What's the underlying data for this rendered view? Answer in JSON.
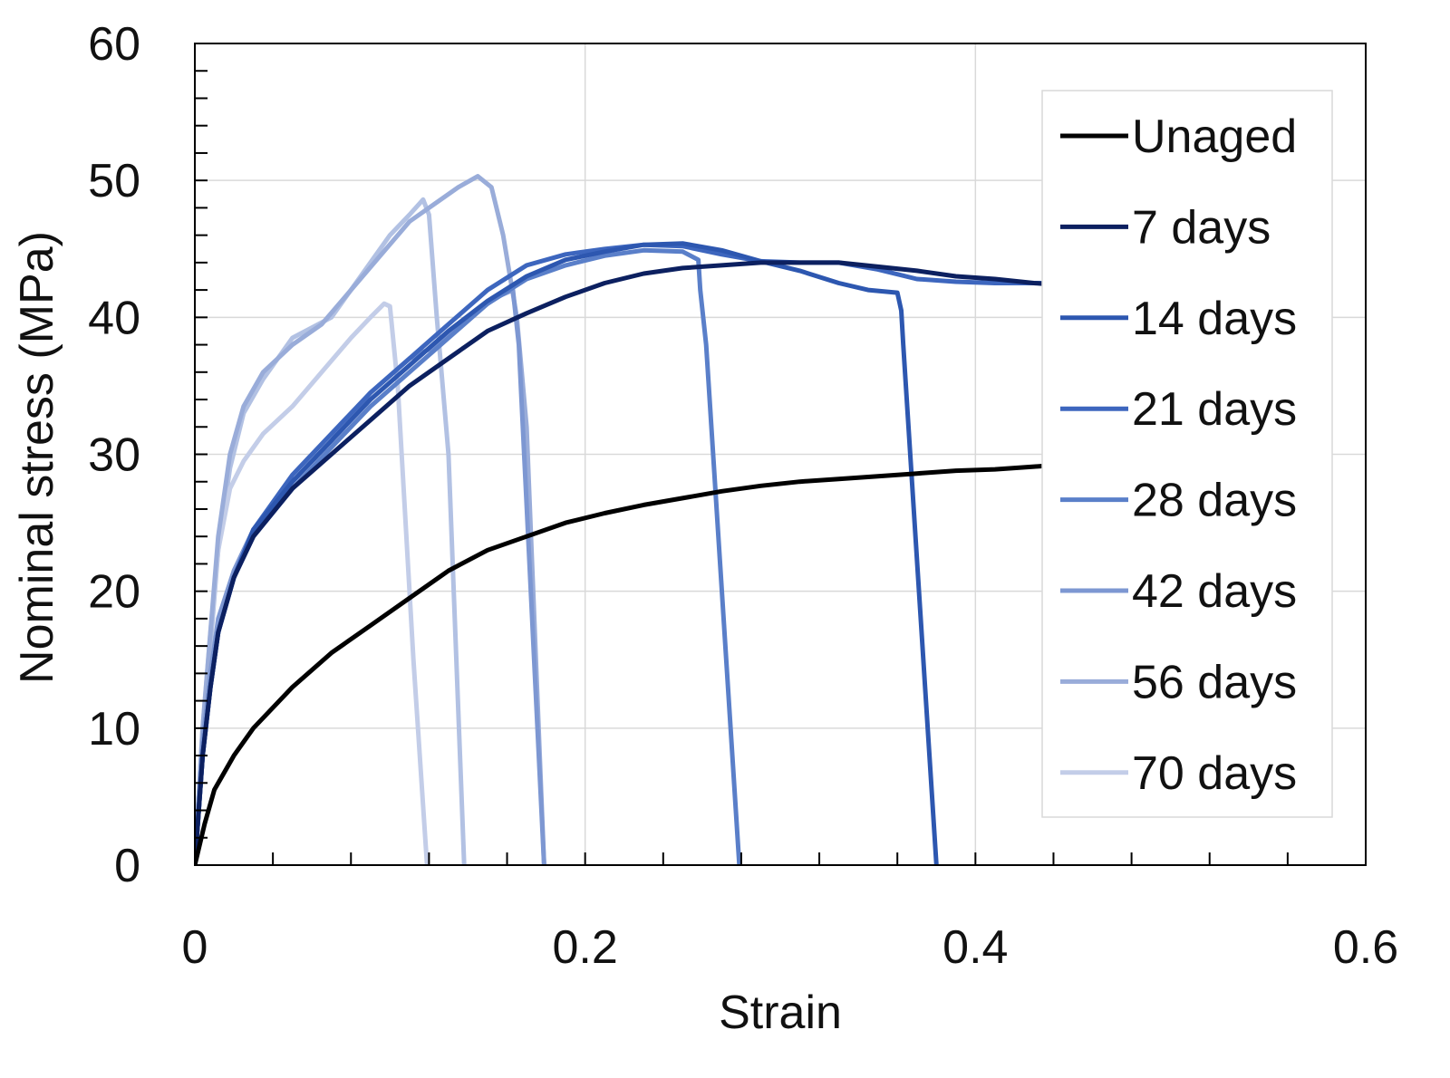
{
  "chart_data": {
    "type": "line",
    "title": "",
    "xlabel": "Strain",
    "ylabel": "Nominal stress (MPa)",
    "xlim": [
      0,
      0.6
    ],
    "ylim": [
      0,
      60
    ],
    "xticks": [
      0,
      0.2,
      0.4,
      0.6
    ],
    "xtick_labels": [
      "0",
      "0.2",
      "0.4",
      "0.6"
    ],
    "yticks": [
      0,
      10,
      20,
      30,
      40,
      50,
      60
    ],
    "ytick_labels": [
      "0",
      "10",
      "20",
      "30",
      "40",
      "50",
      "60"
    ],
    "grid": true,
    "legend_position": "top-right",
    "series": [
      {
        "name": "Unaged",
        "color": "#000000",
        "points": [
          [
            0,
            0
          ],
          [
            0.005,
            3
          ],
          [
            0.01,
            5.5
          ],
          [
            0.02,
            8
          ],
          [
            0.03,
            10
          ],
          [
            0.05,
            13
          ],
          [
            0.07,
            15.5
          ],
          [
            0.09,
            17.5
          ],
          [
            0.11,
            19.5
          ],
          [
            0.13,
            21.5
          ],
          [
            0.15,
            23
          ],
          [
            0.17,
            24
          ],
          [
            0.19,
            25
          ],
          [
            0.21,
            25.7
          ],
          [
            0.23,
            26.3
          ],
          [
            0.25,
            26.8
          ],
          [
            0.27,
            27.3
          ],
          [
            0.29,
            27.7
          ],
          [
            0.31,
            28
          ],
          [
            0.33,
            28.2
          ],
          [
            0.35,
            28.4
          ],
          [
            0.37,
            28.6
          ],
          [
            0.39,
            28.8
          ],
          [
            0.41,
            28.9
          ],
          [
            0.43,
            29.1
          ],
          [
            0.44,
            29.2
          ]
        ]
      },
      {
        "name": "7 days",
        "color": "#0c2060",
        "points": [
          [
            0,
            0
          ],
          [
            0.004,
            8
          ],
          [
            0.008,
            13
          ],
          [
            0.012,
            17
          ],
          [
            0.02,
            21
          ],
          [
            0.03,
            24
          ],
          [
            0.05,
            27.5
          ],
          [
            0.07,
            30
          ],
          [
            0.09,
            32.5
          ],
          [
            0.11,
            35
          ],
          [
            0.13,
            37
          ],
          [
            0.15,
            39
          ],
          [
            0.17,
            40.3
          ],
          [
            0.19,
            41.5
          ],
          [
            0.21,
            42.5
          ],
          [
            0.23,
            43.2
          ],
          [
            0.25,
            43.6
          ],
          [
            0.27,
            43.8
          ],
          [
            0.29,
            44
          ],
          [
            0.31,
            44
          ],
          [
            0.33,
            44
          ],
          [
            0.35,
            43.7
          ],
          [
            0.37,
            43.4
          ],
          [
            0.39,
            43
          ],
          [
            0.41,
            42.8
          ],
          [
            0.43,
            42.5
          ],
          [
            0.44,
            42.4
          ]
        ]
      },
      {
        "name": "14 days",
        "color": "#2d57b0",
        "points": [
          [
            0,
            0
          ],
          [
            0.004,
            8
          ],
          [
            0.008,
            13
          ],
          [
            0.012,
            17
          ],
          [
            0.02,
            21
          ],
          [
            0.03,
            24.5
          ],
          [
            0.05,
            28
          ],
          [
            0.07,
            31
          ],
          [
            0.09,
            34
          ],
          [
            0.11,
            36.5
          ],
          [
            0.13,
            39
          ],
          [
            0.15,
            41.2
          ],
          [
            0.17,
            43
          ],
          [
            0.19,
            44.2
          ],
          [
            0.21,
            44.8
          ],
          [
            0.23,
            45.3
          ],
          [
            0.25,
            45.4
          ],
          [
            0.27,
            44.9
          ],
          [
            0.29,
            44.1
          ],
          [
            0.31,
            43.4
          ],
          [
            0.33,
            42.5
          ],
          [
            0.345,
            42
          ],
          [
            0.36,
            41.8
          ],
          [
            0.362,
            40.5
          ],
          [
            0.363,
            38
          ],
          [
            0.38,
            0
          ]
        ]
      },
      {
        "name": "21 days",
        "color": "#3d66be",
        "points": [
          [
            0,
            0
          ],
          [
            0.004,
            8
          ],
          [
            0.008,
            13
          ],
          [
            0.012,
            17
          ],
          [
            0.02,
            21
          ],
          [
            0.03,
            24.5
          ],
          [
            0.05,
            28.5
          ],
          [
            0.07,
            31.5
          ],
          [
            0.09,
            34.5
          ],
          [
            0.11,
            37
          ],
          [
            0.13,
            39.5
          ],
          [
            0.15,
            42
          ],
          [
            0.17,
            43.8
          ],
          [
            0.19,
            44.6
          ],
          [
            0.21,
            45
          ],
          [
            0.23,
            45.3
          ],
          [
            0.25,
            45.2
          ],
          [
            0.27,
            44.6
          ],
          [
            0.29,
            44.1
          ],
          [
            0.31,
            44
          ],
          [
            0.33,
            44
          ],
          [
            0.35,
            43.5
          ],
          [
            0.37,
            42.8
          ],
          [
            0.39,
            42.6
          ],
          [
            0.41,
            42.5
          ],
          [
            0.43,
            42.5
          ],
          [
            0.44,
            42.5
          ]
        ]
      },
      {
        "name": "28 days",
        "color": "#5a7fc9",
        "points": [
          [
            0,
            0
          ],
          [
            0.004,
            8
          ],
          [
            0.008,
            13
          ],
          [
            0.012,
            17
          ],
          [
            0.02,
            21
          ],
          [
            0.03,
            24
          ],
          [
            0.05,
            27.5
          ],
          [
            0.07,
            30.5
          ],
          [
            0.09,
            33.5
          ],
          [
            0.11,
            36
          ],
          [
            0.13,
            38.5
          ],
          [
            0.15,
            41
          ],
          [
            0.17,
            42.8
          ],
          [
            0.19,
            43.8
          ],
          [
            0.21,
            44.5
          ],
          [
            0.23,
            44.9
          ],
          [
            0.25,
            44.8
          ],
          [
            0.258,
            44.2
          ],
          [
            0.259,
            42
          ],
          [
            0.262,
            38
          ],
          [
            0.279,
            0
          ]
        ]
      },
      {
        "name": "42 days",
        "color": "#7d97d2",
        "points": [
          [
            0,
            0
          ],
          [
            0.004,
            9
          ],
          [
            0.008,
            14
          ],
          [
            0.012,
            18
          ],
          [
            0.02,
            21.5
          ],
          [
            0.03,
            24.5
          ],
          [
            0.05,
            28
          ],
          [
            0.07,
            31
          ],
          [
            0.09,
            34.5
          ],
          [
            0.11,
            37
          ],
          [
            0.125,
            38
          ],
          [
            0.14,
            40
          ],
          [
            0.155,
            41.5
          ],
          [
            0.163,
            42
          ],
          [
            0.166,
            38
          ],
          [
            0.179,
            0
          ]
        ]
      },
      {
        "name": "56 days",
        "color": "#99acd9",
        "points": [
          [
            0,
            0
          ],
          [
            0.004,
            10
          ],
          [
            0.008,
            17
          ],
          [
            0.012,
            24
          ],
          [
            0.018,
            30
          ],
          [
            0.025,
            33.5
          ],
          [
            0.035,
            36
          ],
          [
            0.05,
            38
          ],
          [
            0.065,
            39.5
          ],
          [
            0.08,
            42
          ],
          [
            0.095,
            44.5
          ],
          [
            0.11,
            47
          ],
          [
            0.125,
            48.5
          ],
          [
            0.135,
            49.5
          ],
          [
            0.145,
            50.3
          ],
          [
            0.152,
            49.5
          ],
          [
            0.158,
            46
          ],
          [
            0.165,
            40
          ],
          [
            0.17,
            32
          ],
          [
            0.179,
            0
          ]
        ]
      },
      {
        "name": "70 days",
        "color": "#c3cde8",
        "points": [
          [
            0,
            0
          ],
          [
            0.004,
            10
          ],
          [
            0.008,
            17
          ],
          [
            0.012,
            23
          ],
          [
            0.018,
            27.5
          ],
          [
            0.025,
            29.5
          ],
          [
            0.035,
            31.5
          ],
          [
            0.05,
            33.5
          ],
          [
            0.065,
            36
          ],
          [
            0.08,
            38.5
          ],
          [
            0.09,
            40
          ],
          [
            0.097,
            41
          ],
          [
            0.1,
            40.8
          ],
          [
            0.104,
            35
          ],
          [
            0.112,
            15
          ],
          [
            0.119,
            0
          ]
        ]
      },
      {
        "name": "",
        "color": "#b2c1e3",
        "points": [
          [
            0,
            0
          ],
          [
            0.004,
            9
          ],
          [
            0.008,
            16
          ],
          [
            0.012,
            23
          ],
          [
            0.018,
            29
          ],
          [
            0.025,
            33
          ],
          [
            0.035,
            35.5
          ],
          [
            0.05,
            38.5
          ],
          [
            0.07,
            40
          ],
          [
            0.085,
            43
          ],
          [
            0.1,
            46
          ],
          [
            0.11,
            47.5
          ],
          [
            0.117,
            48.6
          ],
          [
            0.12,
            47.5
          ],
          [
            0.124,
            40
          ],
          [
            0.13,
            30
          ],
          [
            0.138,
            0
          ]
        ]
      }
    ]
  }
}
